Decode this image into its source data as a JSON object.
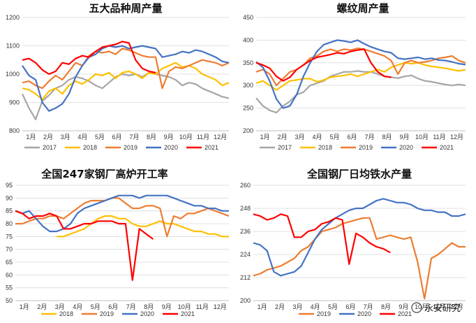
{
  "watermark": "永安研究",
  "months": [
    "1月",
    "2月",
    "3月",
    "4月",
    "5月",
    "6月",
    "7月",
    "8月",
    "9月",
    "10月",
    "11月",
    "12月"
  ],
  "colors": {
    "2017": "#a6a6a6",
    "2018": "#ffc000",
    "2019": "#ed7d31",
    "2020": "#4472c4",
    "2021": "#ff0000"
  },
  "chart_data": [
    {
      "type": "line",
      "title": "五大品种周产量",
      "ylim": [
        800,
        1200
      ],
      "yticks": [
        800,
        900,
        1000,
        1100,
        1200
      ],
      "series": [
        {
          "name": "2017",
          "values": [
            930,
            880,
            840,
            905,
            925,
            950,
            960,
            980,
            990,
            985,
            975,
            960,
            950,
            970,
            990,
            1000,
            995,
            1000,
            990,
            1005,
            1000,
            995,
            990,
            980,
            960,
            970,
            965,
            950,
            940,
            930,
            920,
            915
          ]
        },
        {
          "name": "2018",
          "values": [
            950,
            945,
            930,
            910,
            940,
            950,
            930,
            960,
            975,
            965,
            980,
            1000,
            995,
            1005,
            985,
            1005,
            1010,
            1000,
            985,
            1005,
            1000,
            1020,
            1030,
            1040,
            1025,
            1030,
            1020,
            1000,
            990,
            980,
            960,
            970
          ]
        },
        {
          "name": "2019",
          "values": [
            970,
            975,
            960,
            950,
            975,
            995,
            980,
            1010,
            1040,
            1030,
            1065,
            1080,
            1075,
            1080,
            1070,
            1090,
            1085,
            1075,
            1065,
            1060,
            1060,
            950,
            1010,
            1025,
            1020,
            1030,
            1040,
            1050,
            1045,
            1040,
            1030,
            1040
          ]
        },
        {
          "name": "2020",
          "values": [
            1030,
            995,
            980,
            900,
            870,
            880,
            895,
            930,
            990,
            1030,
            1060,
            1070,
            1090,
            1100,
            1095,
            1100,
            1090,
            1095,
            1100,
            1095,
            1090,
            1060,
            1065,
            1070,
            1080,
            1075,
            1085,
            1080,
            1070,
            1060,
            1045,
            1040
          ]
        },
        {
          "name": "2021",
          "values": [
            1050,
            1055,
            1040,
            1015,
            1000,
            1010,
            1040,
            1035,
            1055,
            1065,
            1060,
            1080,
            1095,
            1100,
            1105,
            1115,
            1110,
            1050,
            1020,
            1010,
            1005,
            null,
            null,
            null,
            null,
            null,
            null,
            null,
            null,
            null,
            null,
            null
          ]
        }
      ]
    },
    {
      "type": "line",
      "title": "螺纹周产量",
      "ylim": [
        200,
        450
      ],
      "yticks": [
        200,
        250,
        300,
        350,
        400,
        450
      ],
      "series": [
        {
          "name": "2017",
          "values": [
            272,
            255,
            245,
            240,
            255,
            265,
            280,
            285,
            300,
            305,
            310,
            320,
            325,
            330,
            330,
            332,
            330,
            330,
            325,
            320,
            318,
            316,
            320,
            322,
            315,
            310,
            308,
            305,
            302,
            300,
            302,
            300
          ]
        },
        {
          "name": "2018",
          "values": [
            305,
            310,
            300,
            290,
            300,
            310,
            312,
            315,
            315,
            308,
            312,
            318,
            320,
            322,
            325,
            320,
            325,
            330,
            335,
            330,
            340,
            345,
            350,
            348,
            350,
            345,
            342,
            340,
            338,
            335,
            332,
            335
          ]
        },
        {
          "name": "2019",
          "values": [
            330,
            335,
            325,
            300,
            315,
            330,
            335,
            345,
            360,
            365,
            375,
            380,
            375,
            380,
            378,
            382,
            380,
            375,
            370,
            365,
            355,
            325,
            350,
            355,
            350,
            352,
            355,
            360,
            362,
            365,
            355,
            350
          ]
        },
        {
          "name": "2020",
          "values": [
            352,
            340,
            310,
            270,
            250,
            255,
            280,
            320,
            350,
            375,
            390,
            395,
            400,
            398,
            395,
            400,
            392,
            385,
            380,
            375,
            372,
            360,
            358,
            360,
            362,
            358,
            360,
            356,
            355,
            352,
            348,
            346
          ]
        },
        {
          "name": "2021",
          "values": [
            350,
            345,
            338,
            320,
            310,
            318,
            335,
            345,
            355,
            362,
            365,
            368,
            372,
            370,
            375,
            378,
            380,
            350,
            330,
            320,
            318,
            null,
            null,
            null,
            null,
            null,
            null,
            null,
            null,
            null,
            null,
            null
          ]
        }
      ]
    },
    {
      "type": "line",
      "title": "全国247家钢厂高炉开工率",
      "ylim": [
        50,
        95
      ],
      "yticks": [
        50,
        55,
        60,
        65,
        70,
        75,
        80,
        85,
        90,
        95
      ],
      "series": [
        {
          "name": "2018",
          "values": [
            null,
            null,
            null,
            null,
            null,
            null,
            75,
            75,
            76,
            77,
            78,
            80,
            82,
            83,
            83,
            82,
            82,
            80,
            79,
            79,
            80,
            81,
            80,
            80,
            79,
            78,
            77,
            77,
            76,
            76,
            75,
            75
          ]
        },
        {
          "name": "2019",
          "values": [
            80,
            80,
            81,
            82,
            82,
            83,
            83,
            82,
            84,
            86,
            88,
            89,
            89,
            89,
            90,
            90,
            88,
            86,
            86,
            87,
            87,
            86,
            75,
            83,
            82,
            84,
            84,
            85,
            86,
            85,
            84,
            83
          ]
        },
        {
          "name": "2020",
          "values": [
            85,
            84,
            85,
            82,
            79,
            77,
            77,
            78,
            80,
            84,
            86,
            87,
            88,
            89,
            90,
            91,
            91,
            91,
            90,
            91,
            91,
            91,
            91,
            90,
            89,
            88,
            87,
            87,
            86,
            86,
            85,
            85
          ]
        },
        {
          "name": "2021",
          "values": [
            85,
            84,
            82,
            83,
            83,
            84,
            83,
            78,
            78,
            79,
            80,
            80,
            81,
            81,
            81,
            80,
            80,
            58,
            78,
            76,
            74,
            null,
            null,
            null,
            null,
            null,
            null,
            null,
            null,
            null,
            null,
            null
          ]
        }
      ]
    },
    {
      "type": "line",
      "title": "全国钢厂日均铁水产量",
      "ylim": [
        200,
        260
      ],
      "yticks": [
        200,
        212,
        224,
        236,
        248,
        260
      ],
      "series": [
        {
          "name": "2019",
          "values": [
            213,
            214,
            216,
            217,
            218,
            220,
            222,
            226,
            228,
            232,
            236,
            237,
            238,
            240,
            241,
            242,
            243,
            243,
            232,
            233,
            234,
            233,
            232,
            233,
            220,
            201,
            222,
            224,
            227,
            230,
            228,
            228
          ]
        },
        {
          "name": "2020",
          "values": [
            230,
            229,
            226,
            215,
            213,
            214,
            215,
            218,
            225,
            232,
            237,
            240,
            243,
            245,
            247,
            248,
            248,
            250,
            252,
            253,
            252,
            251,
            251,
            250,
            248,
            247,
            247,
            246,
            246,
            244,
            244,
            245
          ]
        },
        {
          "name": "2021",
          "values": [
            245,
            244,
            242,
            243,
            245,
            244,
            233,
            233,
            236,
            237,
            240,
            241,
            243,
            242,
            219,
            235,
            233,
            230,
            228,
            227,
            225,
            null,
            null,
            null,
            null,
            null,
            null,
            null,
            null,
            null,
            null,
            null
          ]
        }
      ]
    }
  ]
}
